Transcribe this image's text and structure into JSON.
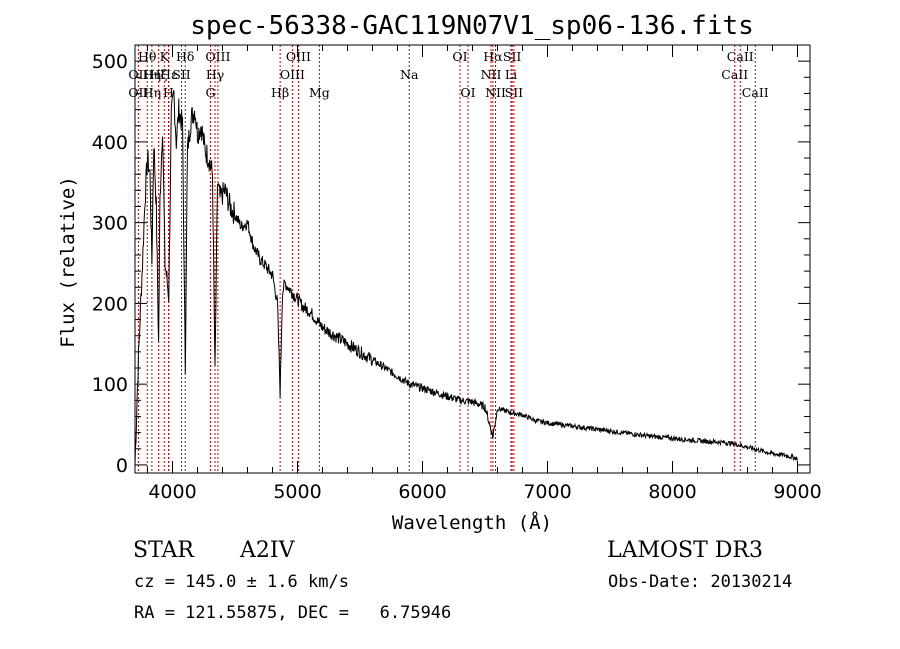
{
  "chart_data": {
    "type": "line",
    "title": "spec-56338-GAC119N07V1_sp06-136.fits",
    "xlabel": "Wavelength (Å)",
    "ylabel": "Flux (relative)",
    "xlim": [
      3700,
      9100
    ],
    "ylim": [
      -10,
      520
    ],
    "xticks": [
      4000,
      5000,
      6000,
      7000,
      8000,
      9000
    ],
    "yticks": [
      0,
      100,
      200,
      300,
      400,
      500
    ],
    "grid": false,
    "series": [
      {
        "name": "spectrum",
        "x": [
          3700,
          3720,
          3740,
          3760,
          3780,
          3800,
          3820,
          3835,
          3850,
          3870,
          3889,
          3900,
          3920,
          3940,
          3970,
          3990,
          4010,
          4030,
          4050,
          4080,
          4102,
          4120,
          4150,
          4180,
          4200,
          4230,
          4260,
          4290,
          4320,
          4340,
          4360,
          4380,
          4420,
          4460,
          4500,
          4550,
          4600,
          4650,
          4700,
          4750,
          4800,
          4840,
          4861,
          4880,
          4900,
          4950,
          5000,
          5050,
          5100,
          5150,
          5200,
          5300,
          5400,
          5500,
          5600,
          5700,
          5800,
          5900,
          6000,
          6100,
          6200,
          6300,
          6400,
          6500,
          6563,
          6600,
          6700,
          6800,
          6900,
          7000,
          7200,
          7400,
          7600,
          7800,
          8000,
          8200,
          8400,
          8500,
          8600,
          8700,
          8800,
          8900,
          9000
        ],
        "y": [
          0,
          100,
          180,
          250,
          330,
          380,
          360,
          250,
          400,
          320,
          150,
          330,
          420,
          250,
          210,
          430,
          460,
          400,
          440,
          420,
          120,
          390,
          430,
          440,
          410,
          420,
          390,
          380,
          360,
          110,
          350,
          330,
          340,
          320,
          310,
          295,
          300,
          270,
          255,
          245,
          235,
          200,
          90,
          215,
          225,
          215,
          205,
          195,
          190,
          180,
          170,
          160,
          150,
          140,
          130,
          120,
          110,
          100,
          95,
          90,
          85,
          80,
          78,
          72,
          35,
          70,
          65,
          62,
          55,
          52,
          48,
          44,
          40,
          36,
          33,
          30,
          28,
          26,
          22,
          18,
          14,
          12,
          8
        ]
      }
    ],
    "annotations": [
      {
        "label": "Hθ",
        "wave": 3798,
        "row": 0
      },
      {
        "label": "OII",
        "wave": 3727,
        "row": 1
      },
      {
        "label": "OII",
        "wave": 3727,
        "row": 2
      },
      {
        "label": "Hη",
        "wave": 3835,
        "row": 1
      },
      {
        "label": "Hζ",
        "wave": 3889,
        "row": 1
      },
      {
        "label": "K",
        "wave": 3934,
        "row": 0
      },
      {
        "label": "Hε",
        "wave": 3970,
        "row": 1
      },
      {
        "label": "H",
        "wave": 3968,
        "row": 2
      },
      {
        "label": "Hη",
        "wave": 3835,
        "row": 2
      },
      {
        "label": "Hδ",
        "wave": 4102,
        "row": 0
      },
      {
        "label": "SII",
        "wave": 4072,
        "row": 1
      },
      {
        "label": "OIII",
        "wave": 4363,
        "row": 0
      },
      {
        "label": "Hγ",
        "wave": 4340,
        "row": 1
      },
      {
        "label": "G",
        "wave": 4304,
        "row": 2
      },
      {
        "label": "Hβ",
        "wave": 4861,
        "row": 2
      },
      {
        "label": "OIII",
        "wave": 5007,
        "row": 0
      },
      {
        "label": "OIII",
        "wave": 4959,
        "row": 1
      },
      {
        "label": "Mg",
        "wave": 5175,
        "row": 2
      },
      {
        "label": "Na",
        "wave": 5894,
        "row": 1
      },
      {
        "label": "OI",
        "wave": 6300,
        "row": 0
      },
      {
        "label": "OI",
        "wave": 6364,
        "row": 2
      },
      {
        "label": "Hα",
        "wave": 6563,
        "row": 0
      },
      {
        "label": "NII",
        "wave": 6548,
        "row": 1
      },
      {
        "label": "NII",
        "wave": 6584,
        "row": 2
      },
      {
        "label": "SII",
        "wave": 6717,
        "row": 0
      },
      {
        "label": "Li",
        "wave": 6708,
        "row": 1
      },
      {
        "label": "SII",
        "wave": 6731,
        "row": 2
      },
      {
        "label": "CaII",
        "wave": 8542,
        "row": 0
      },
      {
        "label": "CaII",
        "wave": 8498,
        "row": 1
      },
      {
        "label": "CaII",
        "wave": 8662,
        "row": 2
      }
    ]
  },
  "info": {
    "object_type": "STAR",
    "subclass": "A2IV",
    "survey": "LAMOST DR3",
    "redshift": "cz = 145.0 ± 1.6 km/s",
    "obs_date": "Obs-Date: 20130214",
    "coords": "RA = 121.55875, DEC =   6.75946"
  },
  "colors": {
    "line": "#000000",
    "marker": "#cc0000"
  }
}
